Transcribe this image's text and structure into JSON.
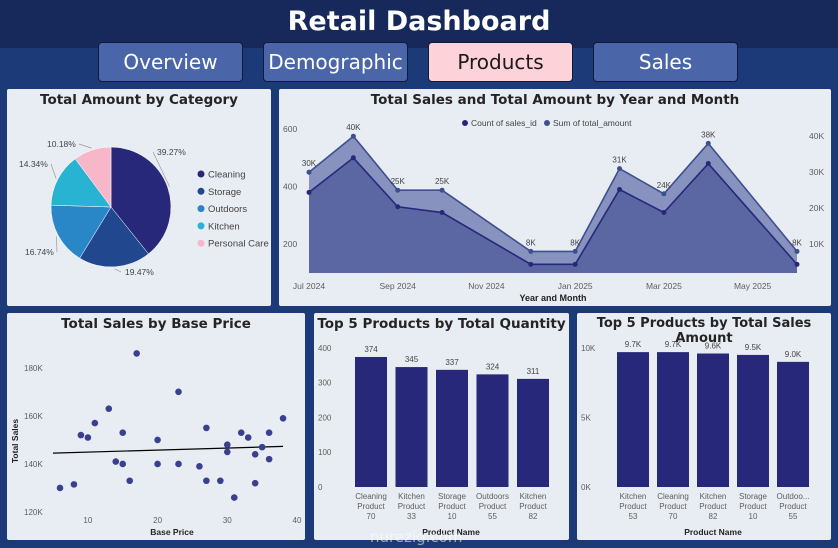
{
  "header": {
    "title": "Retail Dashboard"
  },
  "tabs": [
    {
      "label": "Overview"
    },
    {
      "label": "Demographic"
    },
    {
      "label": "Products"
    },
    {
      "label": "Sales"
    }
  ],
  "active_tab": "Products",
  "colors": {
    "navy": "#27287a",
    "accent": "#fdd2d8",
    "panel": "#e8ecf3",
    "background": "#1d3a78"
  },
  "watermark": "nurezig.com",
  "chart_data": [
    {
      "type": "pie",
      "title": "Total Amount by Category",
      "categories": [
        "Cleaning",
        "Storage",
        "Outdoors",
        "Kitchen",
        "Personal Care"
      ],
      "values": [
        39.27,
        19.47,
        16.74,
        14.34,
        10.18
      ],
      "labels": [
        "39.27%",
        "19.47%",
        "16.74%",
        "14.34%",
        "10.18%"
      ],
      "colors": [
        "#27287a",
        "#21478f",
        "#2a87c7",
        "#27b3d1",
        "#f8b6c9"
      ],
      "legend": "right"
    },
    {
      "type": "area",
      "title": "Total Sales and Total Amount by Year and Month",
      "xlabel": "Year and Month",
      "x_ticks": [
        "Jul 2024",
        "Sep 2024",
        "Nov 2024",
        "Jan 2025",
        "Mar 2025",
        "May 2025"
      ],
      "y_left_ticks": [
        "200",
        "400",
        "600"
      ],
      "y_right_ticks": [
        "10K",
        "20K",
        "30K",
        "40K"
      ],
      "x": [
        "Jul 2024",
        "Aug 2024",
        "Sep 2024",
        "Oct 2024",
        "Dec 2024",
        "Jan 2025",
        "Feb 2025",
        "Mar 2025",
        "Apr 2025",
        "Jun 2025"
      ],
      "series": [
        {
          "name": "Count of sales_id",
          "axis": "left",
          "values": [
            380,
            500,
            330,
            310,
            130,
            130,
            390,
            310,
            480,
            130
          ]
        },
        {
          "name": "Sum of total_amount",
          "axis": "right",
          "values": [
            30000,
            40000,
            25000,
            25000,
            8000,
            8000,
            31000,
            24000,
            38000,
            8000
          ]
        }
      ],
      "data_labels": [
        "30K",
        "40K",
        "25K",
        "25K",
        "8K",
        "8K",
        "31K",
        "24K",
        "38K",
        "8K"
      ],
      "legend": "top-center"
    },
    {
      "type": "scatter",
      "title": "Total Sales by Base Price",
      "xlabel": "Base Price",
      "ylabel": "Total Sales",
      "x_ticks": [
        "10",
        "20",
        "30",
        "40"
      ],
      "y_ticks": [
        "120K",
        "140K",
        "160K",
        "180K"
      ],
      "points": [
        [
          6,
          130000
        ],
        [
          8,
          131500
        ],
        [
          9,
          152000
        ],
        [
          10,
          151000
        ],
        [
          11,
          157000
        ],
        [
          13,
          163000
        ],
        [
          14,
          141000
        ],
        [
          15,
          153000
        ],
        [
          15,
          140000
        ],
        [
          16,
          133000
        ],
        [
          17,
          186000
        ],
        [
          20,
          140000
        ],
        [
          20,
          150000
        ],
        [
          23,
          170000
        ],
        [
          23,
          140000
        ],
        [
          26,
          139000
        ],
        [
          27,
          133000
        ],
        [
          27,
          155000
        ],
        [
          29,
          133000
        ],
        [
          30,
          145000
        ],
        [
          30,
          148000
        ],
        [
          31,
          126000
        ],
        [
          32,
          153000
        ],
        [
          33,
          151000
        ],
        [
          34,
          144000
        ],
        [
          34,
          132000
        ],
        [
          35,
          147000
        ],
        [
          36,
          142000
        ],
        [
          36,
          153000
        ],
        [
          38,
          159000
        ]
      ],
      "trendline": [
        [
          5,
          144500
        ],
        [
          38,
          147300
        ]
      ]
    },
    {
      "type": "bar",
      "title": "Top 5 Products by Total Quantity",
      "xlabel": "Product Name",
      "categories": [
        "Cleaning Product 70",
        "Kitchen Product 33",
        "Storage Product 10",
        "Outdoors Product 55",
        "Kitchen Product 82"
      ],
      "values": [
        374,
        345,
        337,
        324,
        311
      ],
      "data_labels": [
        "374",
        "345",
        "337",
        "324",
        "311"
      ],
      "y_ticks": [
        "0",
        "100",
        "200",
        "300",
        "400"
      ],
      "ylim": [
        0,
        420
      ]
    },
    {
      "type": "bar",
      "title": "Top 5 Products by Total Sales Amount",
      "xlabel": "Product Name",
      "categories": [
        "Kitchen Product 53",
        "Cleaning Product 70",
        "Kitchen Product 82",
        "Storage Product 10",
        "Outdoo... Product 55"
      ],
      "values": [
        9700,
        9700,
        9600,
        9500,
        9000
      ],
      "data_labels": [
        "9.7K",
        "9.7K",
        "9.6K",
        "9.5K",
        "9.0K"
      ],
      "y_ticks": [
        "0K",
        "5K",
        "10K"
      ],
      "ylim": [
        0,
        10500
      ]
    }
  ]
}
